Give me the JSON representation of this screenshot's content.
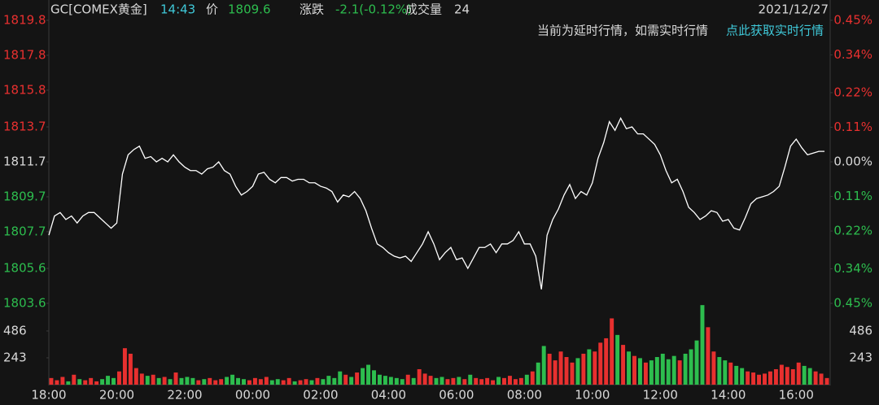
{
  "header": {
    "symbol": "GC[COMEX黄金]",
    "time": "14:43",
    "price_label": "价",
    "price": 1809.6,
    "change_label": "涨跌",
    "change": "-2.1(-0.12%)",
    "volume_label": "成交量",
    "volume": 24,
    "date": "2021/12/27",
    "notice": "当前为延时行情，如需实时行情",
    "notice_link": "点此获取实时行情"
  },
  "chart_data": [
    {
      "type": "line",
      "color": "#ffffff",
      "up_color": "#e8302f",
      "down_color": "#2dbd4e",
      "flat_color": "#d8d8d8",
      "x": [
        "18:00",
        "18:10",
        "18:20",
        "18:30",
        "18:40",
        "18:50",
        "19:00",
        "19:10",
        "19:20",
        "19:30",
        "19:40",
        "19:50",
        "20:00",
        "20:10",
        "20:20",
        "20:30",
        "20:40",
        "20:50",
        "21:00",
        "21:10",
        "21:20",
        "21:30",
        "21:40",
        "21:50",
        "22:00",
        "22:10",
        "22:20",
        "22:30",
        "22:40",
        "22:50",
        "23:00",
        "23:10",
        "23:20",
        "23:30",
        "23:40",
        "23:50",
        "00:00",
        "00:10",
        "00:20",
        "00:30",
        "00:40",
        "00:50",
        "01:00",
        "01:10",
        "01:20",
        "01:30",
        "01:40",
        "01:50",
        "02:00",
        "02:10",
        "02:20",
        "02:30",
        "02:40",
        "02:50",
        "03:00",
        "03:10",
        "03:20",
        "03:30",
        "03:40",
        "03:50",
        "04:00",
        "04:10",
        "04:20",
        "04:30",
        "04:40",
        "04:50",
        "05:00",
        "05:10",
        "05:20",
        "05:30",
        "05:40",
        "05:50",
        "06:00",
        "06:10",
        "06:20",
        "06:30",
        "06:40",
        "06:50",
        "07:00",
        "07:10",
        "07:20",
        "07:30",
        "07:40",
        "07:50",
        "08:00",
        "08:10",
        "08:20",
        "08:30",
        "08:40",
        "08:50",
        "09:00",
        "09:10",
        "09:20",
        "09:30",
        "09:40",
        "09:50",
        "10:00",
        "10:10",
        "10:20",
        "10:30",
        "10:40",
        "10:50",
        "11:00",
        "11:10",
        "11:20",
        "11:30",
        "11:40",
        "11:50",
        "12:00",
        "12:10",
        "12:20",
        "12:30",
        "12:40",
        "12:50",
        "13:00",
        "13:10",
        "13:20",
        "13:30",
        "13:40",
        "13:50",
        "14:00",
        "14:10",
        "14:20",
        "14:30",
        "14:40",
        "14:50",
        "15:00",
        "15:10",
        "15:20",
        "15:30",
        "15:40",
        "15:50",
        "16:00",
        "16:10",
        "16:20",
        "16:30",
        "16:40",
        "16:50"
      ],
      "values": [
        1807.5,
        1808.6,
        1808.8,
        1808.4,
        1808.6,
        1808.2,
        1808.6,
        1808.8,
        1808.8,
        1808.5,
        1808.2,
        1807.9,
        1808.2,
        1811.0,
        1812.1,
        1812.4,
        1812.6,
        1811.9,
        1812.0,
        1811.7,
        1811.9,
        1811.7,
        1812.1,
        1811.7,
        1811.4,
        1811.2,
        1811.2,
        1811.0,
        1811.3,
        1811.4,
        1811.7,
        1811.2,
        1811.0,
        1810.3,
        1809.8,
        1810.0,
        1810.3,
        1811.0,
        1811.1,
        1810.7,
        1810.5,
        1810.8,
        1810.8,
        1810.6,
        1810.7,
        1810.7,
        1810.5,
        1810.5,
        1810.3,
        1810.2,
        1810.0,
        1809.4,
        1809.8,
        1809.7,
        1810.0,
        1809.6,
        1808.9,
        1807.9,
        1807.0,
        1806.8,
        1806.5,
        1806.3,
        1806.2,
        1806.3,
        1806.0,
        1806.5,
        1807.0,
        1807.7,
        1807.0,
        1806.1,
        1806.5,
        1806.8,
        1806.1,
        1806.2,
        1805.6,
        1806.2,
        1806.8,
        1806.8,
        1807.0,
        1806.5,
        1807.0,
        1807.0,
        1807.2,
        1807.7,
        1807.0,
        1807.0,
        1806.3,
        1804.4,
        1807.5,
        1808.4,
        1809.0,
        1809.8,
        1810.4,
        1809.6,
        1810.0,
        1809.8,
        1810.5,
        1811.9,
        1812.8,
        1814.0,
        1813.5,
        1814.2,
        1813.6,
        1813.7,
        1813.3,
        1813.3,
        1813.0,
        1812.7,
        1812.1,
        1811.2,
        1810.5,
        1810.7,
        1810.0,
        1809.1,
        1808.8,
        1808.4,
        1808.6,
        1808.9,
        1808.8,
        1808.3,
        1808.4,
        1807.9,
        1807.8,
        1808.5,
        1809.3,
        1809.6,
        1809.7,
        1809.8,
        1810.0,
        1810.3,
        1811.4,
        1812.6,
        1813.0,
        1812.5,
        1812.1,
        1812.2,
        1812.3,
        1812.3
      ],
      "ylim": [
        1803.6,
        1819.8
      ],
      "yticks": [
        1819.8,
        1817.8,
        1815.8,
        1813.7,
        1811.7,
        1809.7,
        1807.7,
        1805.6,
        1803.6
      ],
      "y2lim": [
        -0.45,
        0.45
      ],
      "y2ticks": [
        {
          "value": 0.45,
          "label": "0.45%"
        },
        {
          "value": 0.34,
          "label": "0.34%"
        },
        {
          "value": 0.22,
          "label": "0.22%"
        },
        {
          "value": 0.11,
          "label": "0.11%"
        },
        {
          "value": 0,
          "label": "0.00%"
        },
        {
          "value": -0.11,
          "label": "0.11%"
        },
        {
          "value": -0.22,
          "label": "0.22%"
        },
        {
          "value": -0.34,
          "label": "0.34%"
        },
        {
          "value": -0.45,
          "label": "0.45%"
        }
      ]
    },
    {
      "type": "bar",
      "values": [
        60,
        40,
        70,
        30,
        90,
        50,
        40,
        60,
        30,
        50,
        80,
        60,
        120,
        330,
        280,
        150,
        100,
        80,
        90,
        60,
        70,
        50,
        110,
        60,
        70,
        60,
        40,
        50,
        60,
        40,
        50,
        70,
        90,
        60,
        50,
        40,
        60,
        50,
        70,
        40,
        50,
        40,
        60,
        30,
        40,
        50,
        40,
        60,
        50,
        80,
        60,
        120,
        90,
        70,
        110,
        150,
        180,
        130,
        90,
        80,
        70,
        60,
        50,
        90,
        60,
        140,
        100,
        80,
        60,
        70,
        50,
        60,
        70,
        50,
        90,
        60,
        50,
        60,
        40,
        70,
        60,
        80,
        50,
        60,
        90,
        120,
        200,
        350,
        280,
        220,
        300,
        250,
        200,
        240,
        280,
        320,
        300,
        380,
        420,
        600,
        450,
        360,
        300,
        260,
        240,
        200,
        220,
        250,
        280,
        230,
        260,
        220,
        280,
        320,
        400,
        720,
        520,
        300,
        250,
        220,
        200,
        170,
        150,
        120,
        110,
        90,
        100,
        120,
        140,
        180,
        160,
        140,
        200,
        170,
        150,
        120,
        100,
        60
      ],
      "ylim": [
        0,
        736
      ],
      "yticks": [
        243,
        486
      ]
    }
  ]
}
